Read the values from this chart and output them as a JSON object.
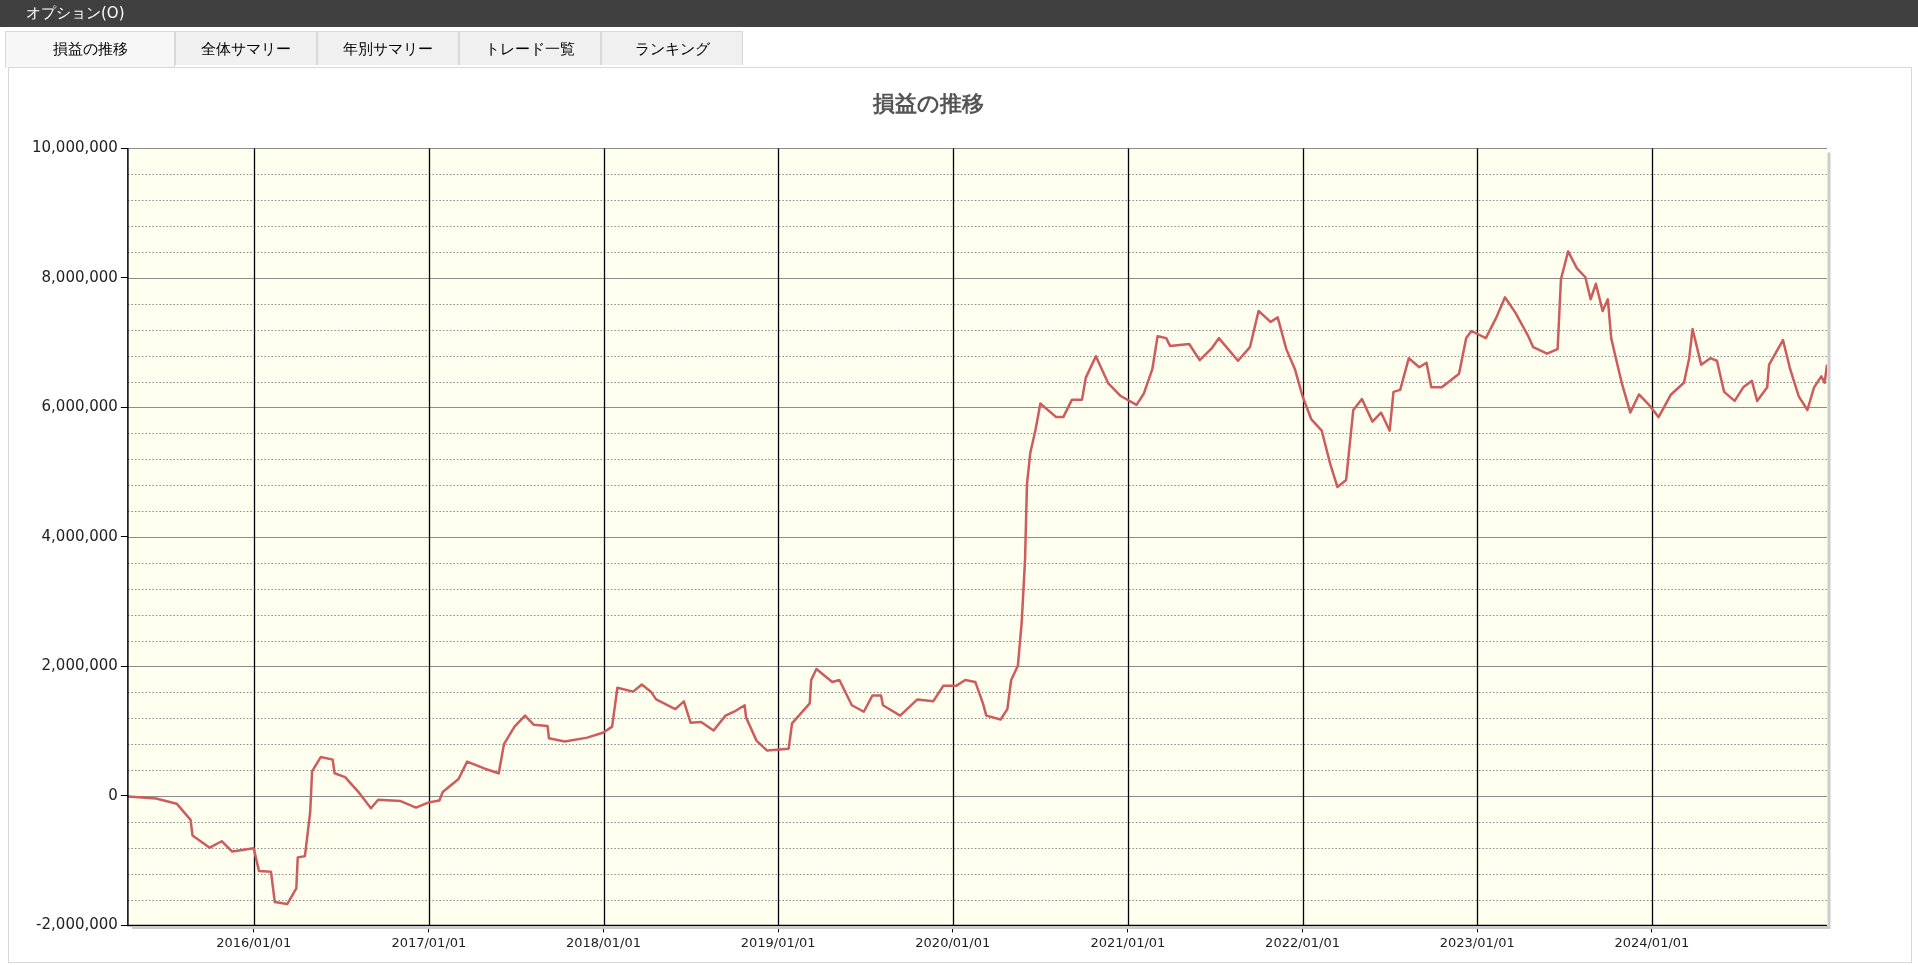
{
  "chart_data": {
    "type": "line",
    "title": "損益の推移",
    "annotations": [
      "オプション(O)",
      "損益の推移",
      "全体サマリー",
      "年別サマリー",
      "トレード一覧",
      "ランキング"
    ],
    "xlim": [
      "2015-04-13",
      "2025-01-01"
    ],
    "xticks": [
      {
        "value": "2016-01-01",
        "label": "2016/01/01"
      },
      {
        "value": "2017-01-01",
        "label": "2017/01/01"
      },
      {
        "value": "2018-01-01",
        "label": "2018/01/01"
      },
      {
        "value": "2019-01-01",
        "label": "2019/01/01"
      },
      {
        "value": "2020-01-01",
        "label": "2020/01/01"
      },
      {
        "value": "2021-01-01",
        "label": "2021/01/01"
      },
      {
        "value": "2022-01-01",
        "label": "2022/01/01"
      },
      {
        "value": "2023-01-01",
        "label": "2023/01/01"
      },
      {
        "value": "2024-01-01",
        "label": "2024/01/01"
      }
    ],
    "ylim": [
      -2000000,
      10000000
    ],
    "yticks": [
      {
        "value": -2000000,
        "label": "-2,000,000"
      },
      {
        "value": -1600000,
        "label": null
      },
      {
        "value": -1200000,
        "label": null
      },
      {
        "value": -800000,
        "label": null
      },
      {
        "value": -400000,
        "label": null
      },
      0,
      {
        "value": 400000,
        "label": null
      },
      {
        "value": 800000,
        "label": null
      },
      {
        "value": 1200000,
        "label": null
      },
      {
        "value": 1600000,
        "label": null
      },
      {
        "value": 2000000,
        "label": "2,000,000"
      },
      {
        "value": 2400000,
        "label": null
      },
      {
        "value": 2800000,
        "label": null
      },
      {
        "value": 3200000,
        "label": null
      },
      {
        "value": 3600000,
        "label": null
      },
      {
        "value": 4000000,
        "label": "4,000,000"
      },
      {
        "value": 4400000,
        "label": null
      },
      {
        "value": 4800000,
        "label": null
      },
      {
        "value": 5200000,
        "label": null
      },
      {
        "value": 5600000,
        "label": null
      },
      {
        "value": 6000000,
        "label": "6,000,000"
      },
      {
        "value": 6400000,
        "label": null
      },
      {
        "value": 6800000,
        "label": null
      },
      {
        "value": 7200000,
        "label": null
      },
      {
        "value": 7600000,
        "label": null
      },
      {
        "value": 8000000,
        "label": "8,000,000"
      },
      {
        "value": 8400000,
        "label": null
      },
      {
        "value": 8800000,
        "label": null
      },
      {
        "value": 9200000,
        "label": null
      },
      {
        "value": 9600000,
        "label": null
      },
      {
        "value": 10000000,
        "label": "10,000,000"
      }
    ],
    "grid": true,
    "legend": false,
    "line_style": "solid",
    "series": [
      {
        "color": "#cd5c5c",
        "x": [
          "2015-04-13",
          "2015-06-11",
          "2015-07-24",
          "2015-08-22",
          "2015-08-26",
          "2015-10-01",
          "2015-10-26",
          "2015-11-17",
          "2016-01-01",
          "2016-01-12",
          "2016-02-06",
          "2016-02-14",
          "2016-03-11",
          "2016-03-30",
          "2016-04-02",
          "2016-04-17",
          "2016-04-28",
          "2016-05-02",
          "2016-05-20",
          "2016-06-14",
          "2016-06-18",
          "2016-07-10",
          "2016-08-08",
          "2016-09-02",
          "2016-09-17",
          "2016-11-03",
          "2016-12-05",
          "2017-01-01",
          "2017-01-23",
          "2017-01-30",
          "2017-03-04",
          "2017-03-22",
          "2017-04-28",
          "2017-05-27",
          "2017-06-07",
          "2017-06-29",
          "2017-07-21",
          "2017-08-08",
          "2017-09-06",
          "2017-09-09",
          "2017-10-12",
          "2017-11-28",
          "2018-01-01",
          "2018-01-19",
          "2018-01-30",
          "2018-03-04",
          "2018-03-22",
          "2018-04-10",
          "2018-04-21",
          "2018-05-31",
          "2018-06-18",
          "2018-07-02",
          "2018-07-24",
          "2018-08-19",
          "2018-09-13",
          "2018-10-01",
          "2018-10-23",
          "2018-10-26",
          "2018-11-17",
          "2018-12-09",
          "2019-01-23",
          "2019-01-30",
          "2019-03-08",
          "2019-03-11",
          "2019-03-22",
          "2019-04-24",
          "2019-05-09",
          "2019-06-04",
          "2019-06-29",
          "2019-07-17",
          "2019-08-04",
          "2019-08-08",
          "2019-09-13",
          "2019-10-19",
          "2019-11-21",
          "2019-12-12",
          "2020-01-08",
          "2020-01-27",
          "2020-02-17",
          "2020-03-04",
          "2020-03-11",
          "2020-04-10",
          "2020-04-24",
          "2020-05-02",
          "2020-05-16",
          "2020-05-24",
          "2020-05-31",
          "2020-06-04",
          "2020-06-11",
          "2020-06-22",
          "2020-07-02",
          "2020-08-04",
          "2020-08-19",
          "2020-09-06",
          "2020-09-27",
          "2020-10-05",
          "2020-10-26",
          "2020-11-21",
          "2020-12-16",
          "2021-01-19",
          "2021-02-03",
          "2021-02-21",
          "2021-03-04",
          "2021-03-22",
          "2021-03-30",
          "2021-05-09",
          "2021-05-31",
          "2021-06-25",
          "2021-07-10",
          "2021-08-19",
          "2021-09-13",
          "2021-10-01",
          "2021-10-26",
          "2021-11-10",
          "2021-11-28",
          "2021-12-16",
          "2022-01-01",
          "2022-01-19",
          "2022-02-10",
          "2022-02-28",
          "2022-03-15",
          "2022-04-02",
          "2022-04-17",
          "2022-05-05",
          "2022-05-27",
          "2022-06-14",
          "2022-07-02",
          "2022-07-10",
          "2022-07-24",
          "2022-08-11",
          "2022-09-02",
          "2022-09-17",
          "2022-09-27",
          "2022-10-19",
          "2022-11-24",
          "2022-12-09",
          "2022-12-20",
          "2023-01-19",
          "2023-02-10",
          "2023-02-28",
          "2023-03-22",
          "2023-04-17",
          "2023-04-28",
          "2023-05-27",
          "2023-06-18",
          "2023-06-25",
          "2023-07-10",
          "2023-07-28",
          "2023-08-15",
          "2023-08-26",
          "2023-09-06",
          "2023-09-20",
          "2023-10-01",
          "2023-10-08",
          "2023-10-19",
          "2023-10-30",
          "2023-11-17",
          "2023-12-05",
          "2023-12-27",
          "2024-01-15",
          "2024-02-10",
          "2024-03-08",
          "2024-03-19",
          "2024-03-26",
          "2024-04-13",
          "2024-05-02",
          "2024-05-16",
          "2024-05-31",
          "2024-06-22",
          "2024-07-10",
          "2024-07-28",
          "2024-08-08",
          "2024-08-29",
          "2024-09-02",
          "2024-10-01",
          "2024-10-16",
          "2024-11-03",
          "2024-11-21",
          "2024-12-05",
          "2024-12-20",
          "2024-12-27",
          "2025-01-01"
        ],
        "values": [
          -10000,
          -40000,
          -120000,
          -370000,
          -610000,
          -800000,
          -700000,
          -860000,
          -810000,
          -1160000,
          -1170000,
          -1640000,
          -1670000,
          -1430000,
          -950000,
          -930000,
          -250000,
          380000,
          600000,
          560000,
          350000,
          290000,
          50000,
          -190000,
          -60000,
          -80000,
          -180000,
          -100000,
          -70000,
          60000,
          260000,
          530000,
          420000,
          350000,
          800000,
          1070000,
          1240000,
          1100000,
          1080000,
          890000,
          840000,
          900000,
          980000,
          1070000,
          1670000,
          1610000,
          1720000,
          1610000,
          1490000,
          1340000,
          1460000,
          1130000,
          1140000,
          1010000,
          1240000,
          1300000,
          1400000,
          1210000,
          850000,
          700000,
          730000,
          1120000,
          1430000,
          1790000,
          1960000,
          1760000,
          1790000,
          1400000,
          1300000,
          1550000,
          1550000,
          1400000,
          1240000,
          1490000,
          1460000,
          1700000,
          1700000,
          1790000,
          1760000,
          1430000,
          1240000,
          1180000,
          1340000,
          1790000,
          2010000,
          2680000,
          3650000,
          4810000,
          5300000,
          5660000,
          6060000,
          5850000,
          5850000,
          6120000,
          6120000,
          6460000,
          6790000,
          6370000,
          6180000,
          6040000,
          6210000,
          6590000,
          7100000,
          7070000,
          6950000,
          6980000,
          6730000,
          6910000,
          7070000,
          6720000,
          6930000,
          7490000,
          7320000,
          7390000,
          6900000,
          6590000,
          6170000,
          5820000,
          5640000,
          5120000,
          4770000,
          4880000,
          5960000,
          6130000,
          5780000,
          5920000,
          5640000,
          6240000,
          6270000,
          6760000,
          6620000,
          6690000,
          6310000,
          6310000,
          6520000,
          7070000,
          7180000,
          7070000,
          7390000,
          7700000,
          7460000,
          7110000,
          6930000,
          6830000,
          6900000,
          7980000,
          8410000,
          8150000,
          8010000,
          7670000,
          7910000,
          7490000,
          7670000,
          7070000,
          6720000,
          6380000,
          5920000,
          6200000,
          6030000,
          5850000,
          6200000,
          6380000,
          6760000,
          7210000,
          6660000,
          6760000,
          6720000,
          6240000,
          6100000,
          6310000,
          6410000,
          6100000,
          6310000,
          6660000,
          7040000,
          6590000,
          6170000,
          5960000,
          6310000,
          6480000,
          6380000,
          6660000
        ]
      }
    ]
  }
}
